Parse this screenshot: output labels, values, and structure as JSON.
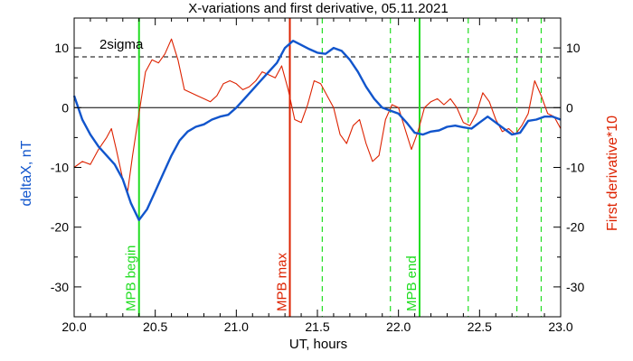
{
  "chart_data": {
    "type": "line",
    "title": "X-variations and first derivative, 05.11.2021",
    "xlabel": "UT, hours",
    "ylabel_left": "deltaX, nT",
    "ylabel_right": "First derivative*10",
    "xlim": [
      20.0,
      23.0
    ],
    "ylim": [
      -35,
      15
    ],
    "xticks": [
      "20.0",
      "20.5",
      "21.0",
      "21.5",
      "22.0",
      "22.5",
      "23.0"
    ],
    "xtick_values": [
      20.0,
      20.5,
      21.0,
      21.5,
      22.0,
      22.5,
      23.0
    ],
    "yticks": [
      "10",
      "0",
      "-10",
      "-20",
      "-30"
    ],
    "ytick_values": [
      10,
      0,
      -10,
      -20,
      -30
    ],
    "colors": {
      "deltaX": "#1155cc",
      "derivative": "#dd2200",
      "mpb": "#22dd22",
      "max": "#dd2200",
      "axes": "#000000"
    },
    "sigma_label": "2sigma",
    "sigma_level": 8.5,
    "zero_level": 0,
    "vlines": [
      {
        "x": 20.4,
        "label": "MPB begin",
        "color": "#22dd22",
        "style": "solid"
      },
      {
        "x": 21.33,
        "label": "MPB max",
        "color": "#dd2200",
        "style": "solid"
      },
      {
        "x": 22.13,
        "label": "MPB end",
        "color": "#22dd22",
        "style": "solid"
      },
      {
        "x": 21.53,
        "label": "",
        "color": "#22dd22",
        "style": "dashed"
      },
      {
        "x": 21.95,
        "label": "",
        "color": "#22dd22",
        "style": "dashed"
      },
      {
        "x": 22.43,
        "label": "",
        "color": "#22dd22",
        "style": "dashed"
      },
      {
        "x": 22.73,
        "label": "",
        "color": "#22dd22",
        "style": "dashed"
      },
      {
        "x": 22.88,
        "label": "",
        "color": "#22dd22",
        "style": "dashed"
      }
    ],
    "series": [
      {
        "name": "deltaX",
        "color": "#1155cc",
        "x": [
          20.0,
          20.05,
          20.1,
          20.15,
          20.2,
          20.25,
          20.3,
          20.35,
          20.4,
          20.45,
          20.5,
          20.55,
          20.6,
          20.65,
          20.7,
          20.75,
          20.8,
          20.85,
          20.9,
          20.95,
          21.0,
          21.05,
          21.1,
          21.15,
          21.2,
          21.25,
          21.3,
          21.35,
          21.4,
          21.45,
          21.5,
          21.55,
          21.6,
          21.65,
          21.7,
          21.75,
          21.8,
          21.85,
          21.9,
          21.95,
          22.0,
          22.05,
          22.1,
          22.15,
          22.2,
          22.25,
          22.3,
          22.35,
          22.4,
          22.45,
          22.5,
          22.55,
          22.6,
          22.65,
          22.7,
          22.75,
          22.8,
          22.85,
          22.9,
          22.95,
          23.0
        ],
        "values": [
          2.0,
          -2.0,
          -4.5,
          -6.5,
          -8.0,
          -9.5,
          -12.0,
          -16.0,
          -18.8,
          -17.0,
          -14.0,
          -11.0,
          -8.0,
          -5.5,
          -4.0,
          -3.2,
          -2.8,
          -2.0,
          -1.5,
          -1.2,
          0.0,
          1.5,
          3.0,
          4.5,
          6.0,
          7.5,
          10.0,
          11.2,
          10.5,
          9.8,
          9.2,
          9.0,
          10.0,
          9.5,
          8.0,
          6.0,
          3.5,
          1.5,
          0.0,
          -0.5,
          -1.0,
          -2.5,
          -4.2,
          -4.5,
          -4.0,
          -3.8,
          -3.2,
          -3.0,
          -3.3,
          -3.5,
          -2.5,
          -1.5,
          -2.5,
          -3.5,
          -4.5,
          -4.2,
          -2.2,
          -2.0,
          -1.5,
          -1.5,
          -2.0
        ]
      },
      {
        "name": "First derivative*10",
        "color": "#dd2200",
        "x": [
          20.0,
          20.05,
          20.1,
          20.15,
          20.2,
          20.23,
          20.26,
          20.3,
          20.33,
          20.36,
          20.4,
          20.44,
          20.48,
          20.52,
          20.56,
          20.6,
          20.64,
          20.68,
          20.72,
          20.76,
          20.8,
          20.84,
          20.88,
          20.92,
          20.96,
          21.0,
          21.04,
          21.08,
          21.12,
          21.16,
          21.2,
          21.24,
          21.28,
          21.32,
          21.36,
          21.4,
          21.44,
          21.48,
          21.52,
          21.56,
          21.6,
          21.64,
          21.68,
          21.72,
          21.76,
          21.8,
          21.84,
          21.88,
          21.92,
          21.96,
          22.0,
          22.04,
          22.08,
          22.12,
          22.16,
          22.2,
          22.24,
          22.28,
          22.32,
          22.36,
          22.4,
          22.44,
          22.48,
          22.52,
          22.56,
          22.6,
          22.64,
          22.68,
          22.72,
          22.76,
          22.8,
          22.84,
          22.88,
          22.92,
          22.96,
          23.0
        ],
        "values": [
          -10.0,
          -9.0,
          -9.5,
          -7.0,
          -5.0,
          -3.5,
          -7.0,
          -12.0,
          -14.0,
          -8.0,
          -1.0,
          6.0,
          8.0,
          7.5,
          9.0,
          11.5,
          8.0,
          3.0,
          2.5,
          2.0,
          1.5,
          1.0,
          2.0,
          4.0,
          4.5,
          4.0,
          3.0,
          3.5,
          4.5,
          6.0,
          5.5,
          5.0,
          7.0,
          3.0,
          -2.0,
          -2.5,
          0.5,
          4.5,
          4.0,
          2.0,
          0.0,
          -4.5,
          -6.0,
          -3.0,
          -2.0,
          -6.0,
          -9.0,
          -8.0,
          -2.0,
          0.5,
          0.0,
          -3.5,
          -7.0,
          -4.0,
          0.0,
          1.0,
          1.5,
          0.5,
          1.5,
          0.0,
          -2.5,
          -3.0,
          -1.0,
          2.5,
          1.0,
          -2.0,
          -4.0,
          -3.5,
          -4.5,
          -3.0,
          -1.0,
          4.5,
          2.0,
          -1.0,
          -1.5,
          -3.5
        ]
      }
    ]
  }
}
